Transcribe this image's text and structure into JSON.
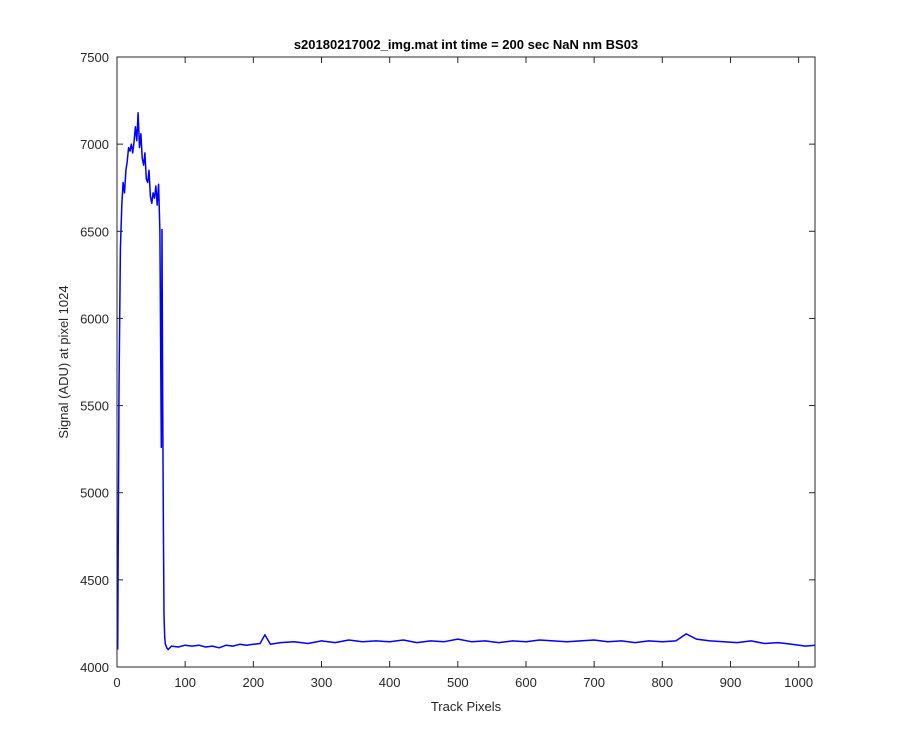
{
  "chart_data": {
    "type": "line",
    "title": "s20180217002_img.mat int time = 200 sec  NaN nm BS03",
    "xlabel": "Track Pixels",
    "ylabel": "Signal (ADU) at pixel 1024",
    "xlim": [
      0,
      1024
    ],
    "ylim": [
      4000,
      7500
    ],
    "xticks": [
      0,
      100,
      200,
      300,
      400,
      500,
      600,
      700,
      800,
      900,
      1000
    ],
    "yticks": [
      4000,
      4500,
      5000,
      5500,
      6000,
      6500,
      7000,
      7500
    ],
    "grid": false,
    "legend": "none",
    "series": [
      {
        "color": "#0000ff",
        "x": [
          1,
          3,
          5,
          7,
          9,
          11,
          13,
          15,
          17,
          19,
          21,
          23,
          25,
          27,
          29,
          31,
          33,
          35,
          37,
          39,
          41,
          43,
          45,
          47,
          49,
          51,
          53,
          55,
          57,
          59,
          61,
          63,
          65,
          66,
          67,
          68,
          69,
          70,
          71,
          73,
          75,
          80,
          90,
          100,
          110,
          120,
          130,
          140,
          150,
          160,
          170,
          180,
          190,
          200,
          210,
          217,
          225,
          240,
          260,
          280,
          300,
          320,
          340,
          360,
          380,
          400,
          420,
          440,
          460,
          480,
          500,
          520,
          540,
          560,
          580,
          600,
          620,
          640,
          660,
          680,
          700,
          720,
          740,
          760,
          780,
          800,
          820,
          835,
          850,
          870,
          890,
          910,
          930,
          950,
          970,
          990,
          1010,
          1024
        ],
        "y": [
          4100,
          5600,
          6400,
          6650,
          6780,
          6720,
          6850,
          6900,
          6980,
          6960,
          7000,
          6950,
          7010,
          7100,
          7020,
          7180,
          6980,
          7060,
          6920,
          6880,
          6950,
          6800,
          6780,
          6850,
          6700,
          6660,
          6720,
          6690,
          6760,
          6650,
          6770,
          6500,
          5260,
          6510,
          5500,
          4800,
          4300,
          4170,
          4130,
          4110,
          4100,
          4120,
          4115,
          4125,
          4120,
          4125,
          4115,
          4120,
          4110,
          4125,
          4120,
          4130,
          4125,
          4130,
          4135,
          4185,
          4130,
          4140,
          4145,
          4135,
          4150,
          4140,
          4155,
          4145,
          4150,
          4145,
          4155,
          4140,
          4150,
          4145,
          4160,
          4145,
          4150,
          4140,
          4150,
          4145,
          4155,
          4150,
          4145,
          4150,
          4155,
          4145,
          4150,
          4140,
          4150,
          4145,
          4150,
          4190,
          4160,
          4150,
          4145,
          4140,
          4150,
          4135,
          4140,
          4130,
          4120,
          4125
        ]
      }
    ]
  }
}
